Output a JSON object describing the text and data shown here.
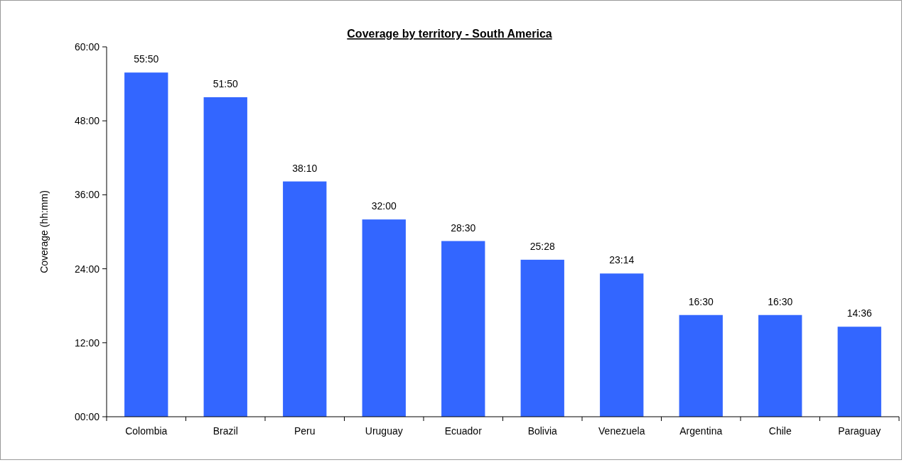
{
  "chart_data": {
    "type": "bar",
    "title": "Coverage by territory - South America",
    "ylabel": "Coverage (hh:mm)",
    "categories": [
      "Colombia",
      "Brazil",
      "Peru",
      "Uruguay",
      "Ecuador",
      "Bolivia",
      "Venezuela",
      "Argentina",
      "Chile",
      "Paraguay"
    ],
    "values": [
      55.833,
      51.833,
      38.167,
      32,
      28.5,
      25.467,
      23.233,
      16.5,
      16.5,
      14.6
    ],
    "value_labels": [
      "55:50",
      "51:50",
      "38:10",
      "32:00",
      "28:30",
      "25:28",
      "23:14",
      "16:30",
      "16:30",
      "14:36"
    ],
    "color": "#3366ff",
    "ylim": [
      0,
      60
    ],
    "yticks": [
      {
        "value": 0,
        "label": "00:00"
      },
      {
        "value": 12,
        "label": "12:00"
      },
      {
        "value": 24,
        "label": "24:00"
      },
      {
        "value": 36,
        "label": "36:00"
      },
      {
        "value": 48,
        "label": "48:00"
      },
      {
        "value": 60,
        "label": "60:00"
      }
    ],
    "grid": false
  }
}
